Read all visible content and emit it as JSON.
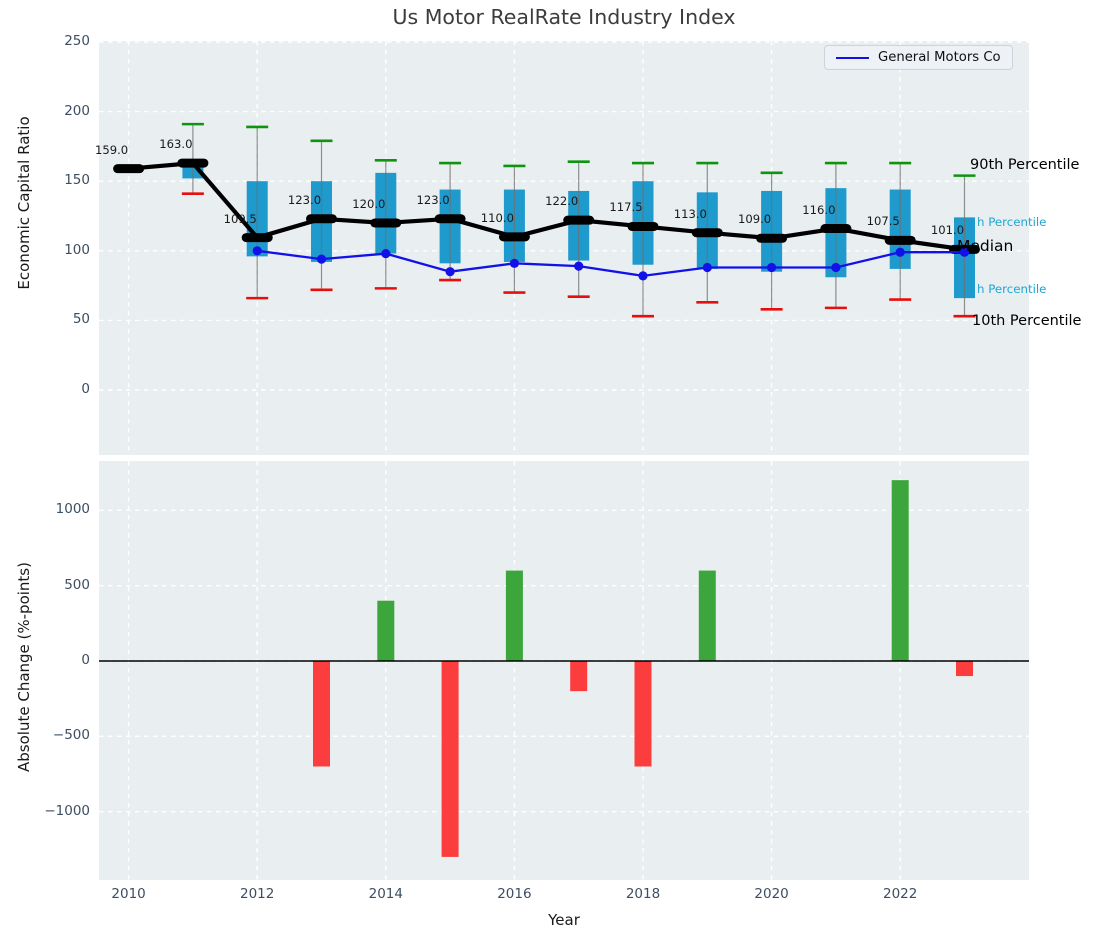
{
  "title": "Us Motor RealRate Industry Index",
  "legend": {
    "label": "General Motors Co"
  },
  "axes": {
    "top": {
      "ylabel": "Economic Capital Ratio",
      "yticks": [
        250,
        200,
        150,
        100,
        50,
        0
      ]
    },
    "bottom": {
      "ylabel": "Absolute Change (%-points)",
      "yticks": [
        1000,
        500,
        0,
        -500,
        -1000
      ]
    },
    "x": {
      "label": "Year",
      "ticks": [
        2010,
        2012,
        2014,
        2016,
        2018,
        2020,
        2022
      ]
    }
  },
  "annotations": {
    "p90": "90th Percentile",
    "p75_visible": "h Percentile",
    "median": "Median",
    "p25_visible": "h Percentile",
    "p10": "10th Percentile"
  },
  "chart_data": [
    {
      "type": "box-whisker-with-line",
      "title": "Us Motor RealRate Industry Index",
      "xlabel": "Year",
      "ylabel": "Economic Capital Ratio",
      "x": [
        2010,
        2011,
        2012,
        2013,
        2014,
        2015,
        2016,
        2017,
        2018,
        2019,
        2020,
        2021,
        2022,
        2023
      ],
      "median": [
        159,
        163,
        109.5,
        123,
        120,
        123,
        110,
        122,
        117.5,
        113,
        109,
        116,
        107.5,
        101
      ],
      "median_labels": [
        "159.0",
        "163.0",
        "109.5",
        "123.0",
        "120.0",
        "123.0",
        "110.0",
        "122.0",
        "117.5",
        "113.0",
        "109.0",
        "116.0",
        "107.5",
        "101.0"
      ],
      "p90": [
        161,
        191,
        189,
        179,
        165,
        163,
        161,
        164,
        163,
        163,
        156,
        163,
        163,
        154
      ],
      "p75": [
        null,
        161,
        150,
        150,
        156,
        144,
        144,
        143,
        150,
        142,
        143,
        145,
        144,
        124
      ],
      "p25": [
        null,
        152,
        96,
        92,
        98,
        91,
        92,
        93,
        90,
        87,
        85,
        81,
        87,
        66
      ],
      "p10": [
        null,
        141,
        66,
        72,
        73,
        79,
        70,
        67,
        53,
        63,
        58,
        59,
        65,
        53
      ],
      "series": [
        {
          "name": "General Motors Co",
          "values": [
            null,
            null,
            100,
            94,
            98,
            85,
            91,
            89,
            82,
            88,
            88,
            88,
            99,
            99
          ]
        }
      ],
      "ylim": [
        -46,
        252
      ],
      "grid": true,
      "legend_position": "upper right"
    },
    {
      "type": "bar",
      "xlabel": "Year",
      "ylabel": "Absolute Change (%-points)",
      "x": [
        2013,
        2014,
        2015,
        2016,
        2017,
        2018,
        2019,
        2022,
        2023
      ],
      "values": [
        -700,
        400,
        -1300,
        600,
        -200,
        -700,
        600,
        1200,
        -100
      ],
      "ylim": [
        -1450,
        1330
      ],
      "grid": true,
      "zero_line": true
    }
  ],
  "colors": {
    "box_blue": "#1f9acd",
    "cap_green": "#0f9410",
    "cap_red": "#e90e0e",
    "median_black": "#000000",
    "gm_blue": "#1212e8",
    "bar_green": "#3ca63c",
    "bar_red": "#fb3d3d",
    "plot_bg": "#e9eef0",
    "grid_white": "#ffffff",
    "whisker_gray": "#6f6f6f",
    "tick_label": "#3d4e63",
    "annotation_cyan": "#1fa6d2",
    "title_gray": "#3c3c3c"
  }
}
